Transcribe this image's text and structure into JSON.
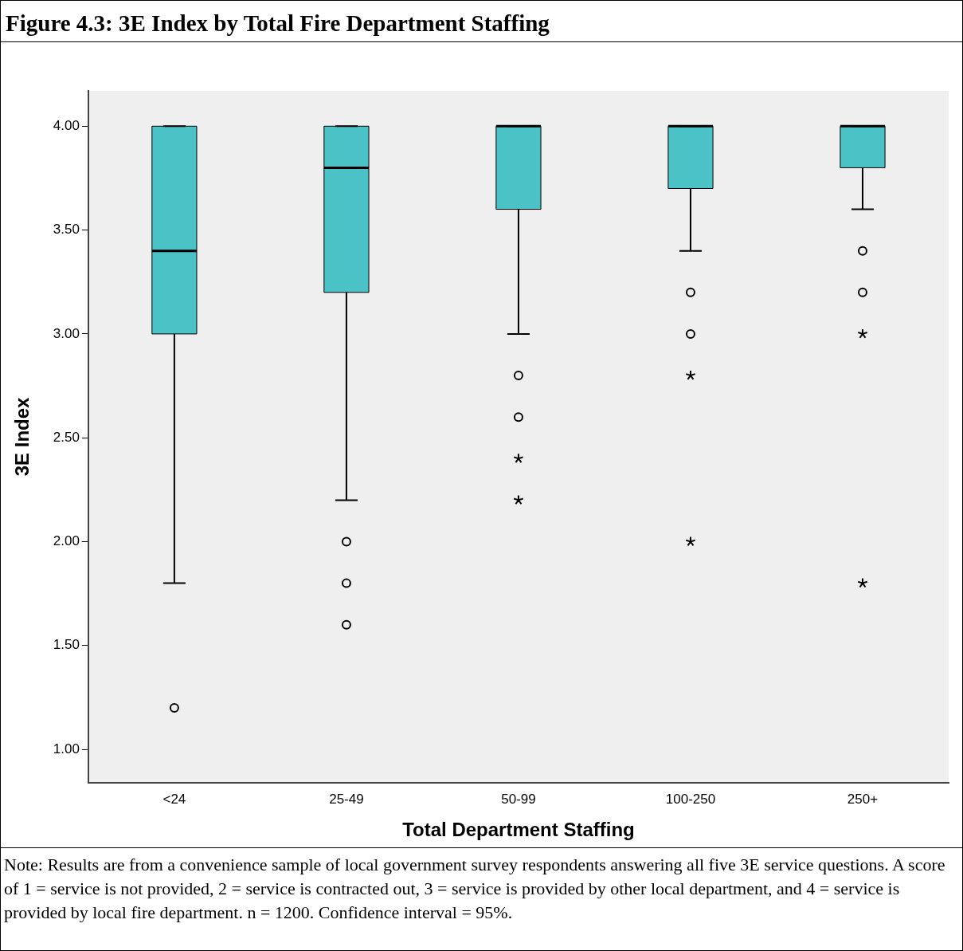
{
  "chart_data": {
    "type": "box",
    "title": "Figure 4.3: 3E Index by Total Fire Department Staffing",
    "xlabel": "Total Department Staffing",
    "ylabel": "3E Index",
    "categories": [
      "<24",
      "25-49",
      "50-99",
      "100-250",
      "250+"
    ],
    "color": "#4bc2c5",
    "boxes": [
      {
        "low": 1.8,
        "q1": 3.0,
        "median": 3.4,
        "q3": 4.0,
        "high": 4.0,
        "outliers": [
          1.2
        ]
      },
      {
        "low": 2.2,
        "q1": 3.2,
        "median": 3.8,
        "q3": 4.0,
        "high": 4.0,
        "outliers": [
          2.0,
          1.8,
          1.6
        ]
      },
      {
        "low": 3.0,
        "q1": 3.6,
        "median": 4.0,
        "q3": 4.0,
        "high": 4.0,
        "outliers": [
          2.8,
          2.6,
          2.4,
          2.2
        ]
      },
      {
        "low": 3.4,
        "q1": 3.7,
        "median": 4.0,
        "q3": 4.0,
        "high": 4.0,
        "outliers": [
          3.2,
          3.0,
          2.8,
          2.0
        ]
      },
      {
        "low": 3.6,
        "q1": 3.8,
        "median": 4.0,
        "q3": 4.0,
        "high": 4.0,
        "outliers": [
          3.4,
          3.2,
          3.0,
          1.8
        ]
      }
    ],
    "ylim": [
      0.84,
      4.17
    ],
    "yticks": [
      {
        "value": 1,
        "label": "1.00"
      },
      {
        "value": 1.5,
        "label": "1.50"
      },
      {
        "value": 2,
        "label": "2.00"
      },
      {
        "value": 2.5,
        "label": "2.50"
      },
      {
        "value": 3,
        "label": "3.00"
      },
      {
        "value": 3.5,
        "label": "3.50"
      },
      {
        "value": 4,
        "label": "4.00"
      }
    ],
    "grid": false,
    "legend": false,
    "annotations": [
      "Note: Results are from a convenience sample of local government survey respondents answering all five 3E service questions.  A score of 1 = service is not provided, 2 = service is contracted out, 3 = service is provided by other local department, and 4 = service is provided by local fire department. n = 1200. Confidence interval = 95%."
    ]
  }
}
